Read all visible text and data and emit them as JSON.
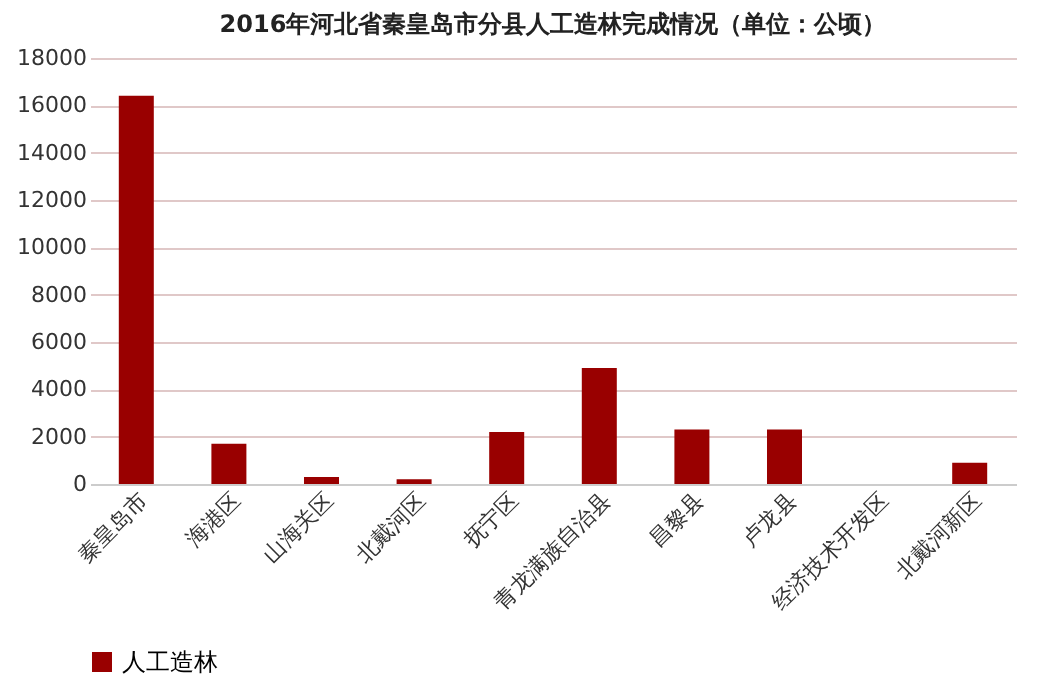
{
  "chart_data": {
    "type": "bar",
    "title": "2016年河北省秦皇岛市分县人工造林完成情况（单位：公顷）",
    "categories": [
      "秦皇岛市",
      "海港区",
      "山海关区",
      "北戴河区",
      "抚宁区",
      "青龙满族自治县",
      "昌黎县",
      "卢龙县",
      "经济技术开发区",
      "北戴河新区"
    ],
    "series": [
      {
        "name": "人工造林",
        "color": "#990000",
        "values": [
          16400,
          1700,
          300,
          200,
          2200,
          4900,
          2300,
          2300,
          0,
          900
        ]
      }
    ],
    "ylim": [
      0,
      18000
    ],
    "yticks": [
      0,
      2000,
      4000,
      6000,
      8000,
      10000,
      12000,
      14000,
      16000,
      18000
    ],
    "grid": "y",
    "legend": "bottom"
  }
}
